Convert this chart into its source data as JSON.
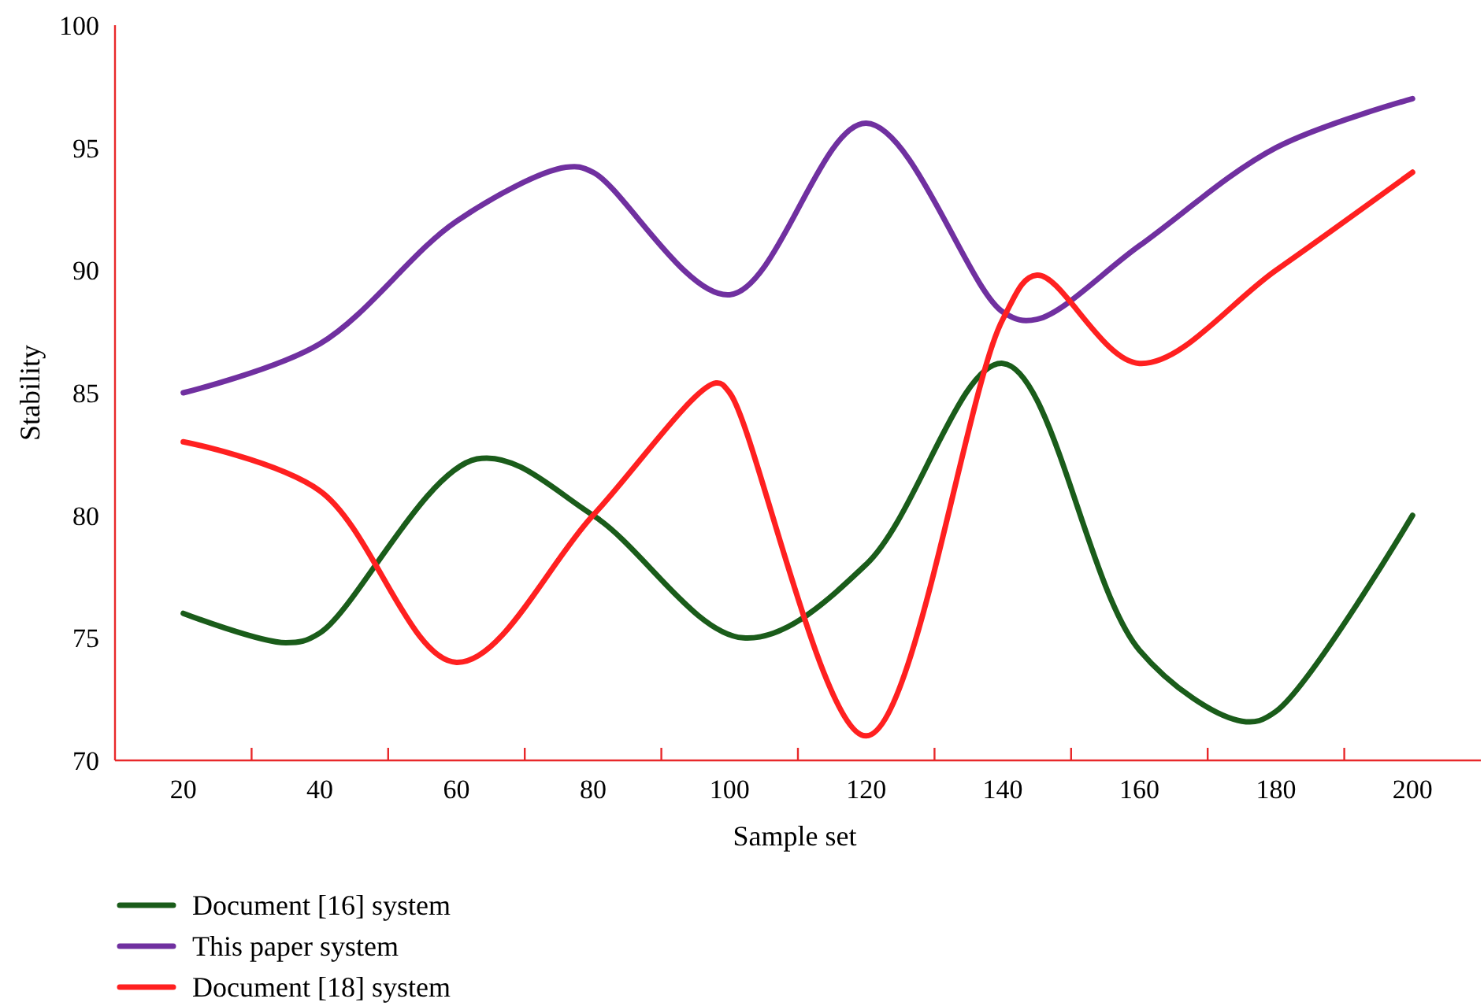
{
  "chart_data": {
    "type": "line",
    "xlabel": "Sample set",
    "ylabel": "Stability",
    "xlim": [
      10,
      210
    ],
    "xticks": [
      {
        "value": 20,
        "label": "20"
      },
      {
        "value": 40,
        "label": "40"
      },
      {
        "value": 60,
        "label": "60"
      },
      {
        "value": 80,
        "label": "80"
      },
      {
        "value": 100,
        "label": "100"
      },
      {
        "value": 120,
        "label": "120"
      },
      {
        "value": 140,
        "label": "140"
      },
      {
        "value": 160,
        "label": "160"
      },
      {
        "value": 180,
        "label": "180"
      },
      {
        "value": 200,
        "label": "200"
      }
    ],
    "ylim": [
      70,
      100
    ],
    "yticks": [
      70,
      75,
      80,
      85,
      90,
      95,
      100
    ],
    "grid": false,
    "legend": "bottom",
    "marker": "none",
    "line_style": "solid",
    "series": [
      {
        "name": "Document [16] system",
        "color": "#1a5c1a",
        "x": [
          20,
          35,
          40,
          63,
          80,
          102,
          120,
          140,
          160,
          175,
          180,
          200
        ],
        "values": [
          76,
          74.8,
          75.2,
          82.3,
          80,
          75,
          78,
          86.2,
          74.5,
          71.6,
          72,
          80
        ]
      },
      {
        "name": "This paper system",
        "color": "#7030a0",
        "x": [
          20,
          40,
          60,
          76,
          80,
          100,
          120,
          140,
          145,
          160,
          180,
          200
        ],
        "values": [
          85,
          87,
          92,
          94.2,
          94,
          89,
          96,
          88.3,
          88,
          91,
          95,
          97
        ]
      },
      {
        "name": "Document [18] system",
        "color": "#ff2020",
        "x": [
          20,
          40,
          60,
          80,
          98,
          100,
          120,
          140,
          145,
          160,
          180,
          200
        ],
        "values": [
          83,
          81,
          74,
          80,
          85.4,
          85,
          71,
          88,
          89.8,
          86.2,
          90,
          94
        ]
      }
    ]
  }
}
